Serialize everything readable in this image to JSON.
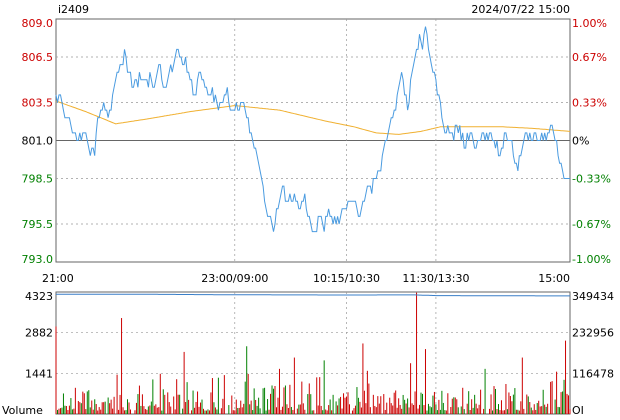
{
  "header": {
    "symbol": "i2409",
    "datetime": "2024/07/22 15:00"
  },
  "colors": {
    "up": "#cc0000",
    "down": "#008000",
    "flat": "#000000",
    "price_line": "#4a9be0",
    "avg_line": "#f0b030",
    "oi_line": "#3a7fc8",
    "grid": "#999999",
    "frame": "#666666"
  },
  "chart_data": [
    {
      "type": "line",
      "panel": "price",
      "ylim": [
        793.0,
        809.0
      ],
      "prev_settle": 801.0,
      "y_ticks_left": [
        "809.0",
        "806.5",
        "803.5",
        "801.0",
        "798.5",
        "795.5",
        "793.0"
      ],
      "y_ticks_left_values": [
        809.0,
        806.5,
        803.5,
        801.0,
        798.5,
        795.5,
        793.0
      ],
      "y_ticks_right": [
        "1.00%",
        "0.67%",
        "0.33%",
        "0%",
        "-0.33%",
        "-0.67%",
        "-1.00%"
      ],
      "x_tick_labels": [
        "21:00",
        "23:00/09:00",
        "10:15/10:30",
        "11:30/13:30",
        "15:00"
      ],
      "x_tick_index": [
        0,
        120,
        195,
        255,
        345
      ],
      "n_points": 346,
      "price_keypoints": [
        [
          0,
          803.8
        ],
        [
          2,
          804.2
        ],
        [
          4,
          803.5
        ],
        [
          6,
          802.6
        ],
        [
          10,
          801.8
        ],
        [
          14,
          801.0
        ],
        [
          18,
          801.3
        ],
        [
          22,
          800.7
        ],
        [
          26,
          800.2
        ],
        [
          28,
          802.5
        ],
        [
          32,
          803.6
        ],
        [
          36,
          802.8
        ],
        [
          40,
          804.8
        ],
        [
          44,
          806.2
        ],
        [
          46,
          806.8
        ],
        [
          48,
          805.6
        ],
        [
          52,
          804.4
        ],
        [
          56,
          805.3
        ],
        [
          60,
          804.9
        ],
        [
          64,
          805.2
        ],
        [
          66,
          804.7
        ],
        [
          70,
          805.9
        ],
        [
          72,
          804.3
        ],
        [
          76,
          805.4
        ],
        [
          80,
          806.4
        ],
        [
          82,
          806.9
        ],
        [
          86,
          806.1
        ],
        [
          90,
          805.0
        ],
        [
          94,
          803.8
        ],
        [
          96,
          805.4
        ],
        [
          100,
          804.4
        ],
        [
          104,
          804.2
        ],
        [
          108,
          803.5
        ],
        [
          112,
          803.3
        ],
        [
          114,
          804.1
        ],
        [
          118,
          803.2
        ],
        [
          120,
          803.1
        ],
        [
          124,
          803.4
        ],
        [
          128,
          802.5
        ],
        [
          130,
          801.6
        ],
        [
          134,
          800.6
        ],
        [
          138,
          798.6
        ],
        [
          140,
          797.1
        ],
        [
          144,
          795.8
        ],
        [
          146,
          795.2
        ],
        [
          148,
          796.3
        ],
        [
          152,
          797.8
        ],
        [
          156,
          796.8
        ],
        [
          160,
          797.3
        ],
        [
          164,
          796.4
        ],
        [
          166,
          797.2
        ],
        [
          170,
          795.8
        ],
        [
          174,
          795.1
        ],
        [
          178,
          796.0
        ],
        [
          180,
          795.2
        ],
        [
          184,
          796.1
        ],
        [
          188,
          795.4
        ],
        [
          192,
          796.3
        ],
        [
          196,
          796.8
        ],
        [
          200,
          797.0
        ],
        [
          204,
          796.2
        ],
        [
          208,
          797.3
        ],
        [
          212,
          797.7
        ],
        [
          216,
          798.8
        ],
        [
          220,
          800.4
        ],
        [
          224,
          801.8
        ],
        [
          228,
          803.2
        ],
        [
          230,
          804.4
        ],
        [
          232,
          805.6
        ],
        [
          236,
          802.9
        ],
        [
          240,
          806.0
        ],
        [
          242,
          807.1
        ],
        [
          244,
          808.0
        ],
        [
          246,
          807.2
        ],
        [
          248,
          808.6
        ],
        [
          250,
          806.9
        ],
        [
          252,
          806.2
        ],
        [
          256,
          804.2
        ],
        [
          258,
          803.3
        ],
        [
          262,
          801.4
        ],
        [
          266,
          801.3
        ],
        [
          270,
          801.6
        ],
        [
          274,
          800.6
        ],
        [
          278,
          801.5
        ],
        [
          282,
          800.3
        ],
        [
          286,
          801.4
        ],
        [
          290,
          800.9
        ],
        [
          294,
          801.2
        ],
        [
          298,
          800.1
        ],
        [
          302,
          801.4
        ],
        [
          306,
          800.8
        ],
        [
          310,
          798.8
        ],
        [
          314,
          801.1
        ],
        [
          318,
          801.3
        ],
        [
          322,
          801.7
        ],
        [
          324,
          800.8
        ],
        [
          328,
          801.3
        ],
        [
          332,
          801.9
        ],
        [
          336,
          800.9
        ],
        [
          338,
          799.4
        ],
        [
          340,
          798.9
        ],
        [
          342,
          798.6
        ],
        [
          345,
          798.5
        ]
      ],
      "avg_keypoints": [
        [
          0,
          803.6
        ],
        [
          20,
          802.9
        ],
        [
          40,
          802.1
        ],
        [
          60,
          802.4
        ],
        [
          90,
          802.9
        ],
        [
          120,
          803.3
        ],
        [
          150,
          803.0
        ],
        [
          180,
          802.3
        ],
        [
          200,
          801.9
        ],
        [
          215,
          801.5
        ],
        [
          230,
          801.4
        ],
        [
          245,
          801.6
        ],
        [
          258,
          801.9
        ],
        [
          280,
          801.9
        ],
        [
          300,
          801.9
        ],
        [
          320,
          801.8
        ],
        [
          345,
          801.6
        ]
      ]
    },
    {
      "type": "bar",
      "panel": "volume_oi",
      "volume_ylim": [
        0,
        4323
      ],
      "volume_ticks": [
        "4323",
        "2882",
        "1441"
      ],
      "volume_tick_values": [
        4323,
        2882,
        1441
      ],
      "oi_ylim": [
        0,
        349434
      ],
      "oi_ticks": [
        "349434",
        "232956",
        "116478"
      ],
      "oi_tick_values": [
        349434,
        232956,
        116478
      ],
      "volume_label": "Volume",
      "oi_label": "OI",
      "oi_keypoints": [
        [
          0,
          343200
        ],
        [
          60,
          342900
        ],
        [
          120,
          341500
        ],
        [
          195,
          340800
        ],
        [
          240,
          341200
        ],
        [
          255,
          339200
        ],
        [
          300,
          338600
        ],
        [
          345,
          338200
        ]
      ],
      "volume_spikes": [
        [
          0,
          3100
        ],
        [
          44,
          3400
        ],
        [
          86,
          2200
        ],
        [
          128,
          2400
        ],
        [
          150,
          1600
        ],
        [
          160,
          2000
        ],
        [
          180,
          1900
        ],
        [
          206,
          2500
        ],
        [
          238,
          1800
        ],
        [
          242,
          4300
        ],
        [
          248,
          2300
        ],
        [
          288,
          1600
        ],
        [
          313,
          2000
        ],
        [
          336,
          1500
        ],
        [
          342,
          2600
        ]
      ]
    }
  ]
}
